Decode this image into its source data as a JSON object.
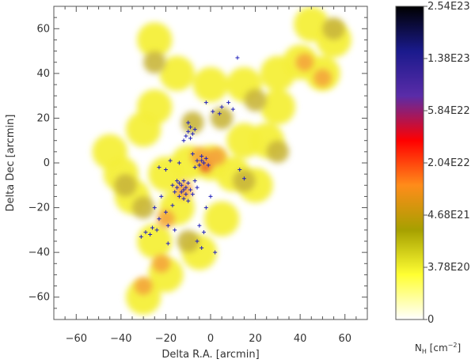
{
  "chart_data": {
    "type": "heatmap",
    "title": "",
    "xlabel": "Delta R.A. [arcmin]",
    "ylabel": "Delta Dec [arcmin]",
    "xlim": [
      -70,
      70
    ],
    "ylim": [
      -70,
      70
    ],
    "x_ticks": [
      -60,
      -40,
      -20,
      0,
      20,
      40,
      60
    ],
    "y_ticks": [
      -60,
      -40,
      -20,
      0,
      20,
      40,
      60
    ],
    "x_tick_labels": [
      "−60",
      "−40",
      "−20",
      "0",
      "20",
      "40",
      "60"
    ],
    "y_tick_labels": [
      "−60",
      "−40",
      "−20",
      "0",
      "20",
      "40",
      "60"
    ],
    "colorbar": {
      "label_main": "N",
      "label_sub": "H",
      "label_unit_open": " [cm",
      "label_unit_exp": "−2",
      "label_unit_close": "]",
      "tick_labels": [
        "2.54E23",
        "1.38E23",
        "5.84E22",
        "2.04E22",
        "4.68E21",
        "3.78E20",
        "0"
      ],
      "stops": [
        "#000000",
        "#1a1a8c",
        "#5a2ca8",
        "#ff0000",
        "#ff8c1a",
        "#a6a000",
        "#ffff33",
        "#ffffff"
      ]
    },
    "colors": {
      "map_base": "#f4ef3a",
      "map_dark": "#c9b63a",
      "map_orange": "#f4a53a",
      "map_red": "#e32222",
      "source_marker": "#2222bb"
    },
    "cloud_core_points": [
      {
        "x": -45,
        "y": 5
      },
      {
        "x": -30,
        "y": 15
      },
      {
        "x": -20,
        "y": -5
      },
      {
        "x": -10,
        "y": 0
      },
      {
        "x": 0,
        "y": 0
      },
      {
        "x": 10,
        "y": -5
      },
      {
        "x": 15,
        "y": 10
      },
      {
        "x": -15,
        "y": -20
      },
      {
        "x": -25,
        "y": -35
      },
      {
        "x": -20,
        "y": -50
      },
      {
        "x": -30,
        "y": -60
      },
      {
        "x": -5,
        "y": -40
      },
      {
        "x": 5,
        "y": -25
      },
      {
        "x": 20,
        "y": -10
      },
      {
        "x": -35,
        "y": -15
      },
      {
        "x": -25,
        "y": 25
      },
      {
        "x": -15,
        "y": 40
      },
      {
        "x": -25,
        "y": 55
      },
      {
        "x": 0,
        "y": 35
      },
      {
        "x": 15,
        "y": 35
      },
      {
        "x": 30,
        "y": 40
      },
      {
        "x": 40,
        "y": 45
      },
      {
        "x": 50,
        "y": 40
      },
      {
        "x": 55,
        "y": 55
      },
      {
        "x": 45,
        "y": 62
      },
      {
        "x": 30,
        "y": 25
      },
      {
        "x": 25,
        "y": 10
      },
      {
        "x": -40,
        "y": -5
      }
    ],
    "dense_patches": [
      {
        "x": -2,
        "y": -1,
        "level": 3
      },
      {
        "x": 0,
        "y": 2,
        "level": 2
      },
      {
        "x": -5,
        "y": 3,
        "level": 2
      },
      {
        "x": -12,
        "y": -12,
        "level": 2
      },
      {
        "x": 3,
        "y": 3,
        "level": 2
      },
      {
        "x": 42,
        "y": 45,
        "level": 2
      },
      {
        "x": 50,
        "y": 38,
        "level": 2
      },
      {
        "x": -20,
        "y": -25,
        "level": 2
      },
      {
        "x": -30,
        "y": -55,
        "level": 2
      },
      {
        "x": -22,
        "y": -45,
        "level": 2
      },
      {
        "x": -25,
        "y": 45,
        "level": 1
      },
      {
        "x": 20,
        "y": 28,
        "level": 1
      },
      {
        "x": 15,
        "y": -8,
        "level": 1
      },
      {
        "x": -8,
        "y": 18,
        "level": 1
      },
      {
        "x": -30,
        "y": -20,
        "level": 1
      },
      {
        "x": 30,
        "y": 5,
        "level": 1
      },
      {
        "x": 55,
        "y": 60,
        "level": 1
      },
      {
        "x": -10,
        "y": -35,
        "level": 1
      },
      {
        "x": 5,
        "y": 20,
        "level": 1
      },
      {
        "x": -38,
        "y": -10,
        "level": 1
      }
    ],
    "sources": [
      {
        "x": -9,
        "y": 16
      },
      {
        "x": -10,
        "y": 14
      },
      {
        "x": -8,
        "y": 13
      },
      {
        "x": -11,
        "y": 12
      },
      {
        "x": -9,
        "y": 11
      },
      {
        "x": -7,
        "y": 15
      },
      {
        "x": -10,
        "y": 18
      },
      {
        "x": -12,
        "y": 10
      },
      {
        "x": -4,
        "y": 1
      },
      {
        "x": -3,
        "y": 0
      },
      {
        "x": -5,
        "y": -1
      },
      {
        "x": -2,
        "y": 2
      },
      {
        "x": -6,
        "y": 1
      },
      {
        "x": -4,
        "y": 3
      },
      {
        "x": -1,
        "y": -1
      },
      {
        "x": -7,
        "y": -2
      },
      {
        "x": -12,
        "y": -8
      },
      {
        "x": -13,
        "y": -10
      },
      {
        "x": -11,
        "y": -11
      },
      {
        "x": -14,
        "y": -9
      },
      {
        "x": -12,
        "y": -12
      },
      {
        "x": -10,
        "y": -9
      },
      {
        "x": -13,
        "y": -13
      },
      {
        "x": -15,
        "y": -11
      },
      {
        "x": -11,
        "y": -14
      },
      {
        "x": -9,
        "y": -12
      },
      {
        "x": -14,
        "y": -15
      },
      {
        "x": -16,
        "y": -13
      },
      {
        "x": -8,
        "y": -14
      },
      {
        "x": -12,
        "y": -16
      },
      {
        "x": -10,
        "y": -17
      },
      {
        "x": -15,
        "y": -8
      },
      {
        "x": -7,
        "y": -8
      },
      {
        "x": -17,
        "y": -10
      },
      {
        "x": -6,
        "y": -11
      },
      {
        "x": -20,
        "y": -3
      },
      {
        "x": -23,
        "y": -2
      },
      {
        "x": -18,
        "y": 1
      },
      {
        "x": -14,
        "y": 0
      },
      {
        "x": 5,
        "y": 25
      },
      {
        "x": 8,
        "y": 27
      },
      {
        "x": 10,
        "y": 24
      },
      {
        "x": 4,
        "y": 22
      },
      {
        "x": -2,
        "y": 27
      },
      {
        "x": 1,
        "y": 23
      },
      {
        "x": 12,
        "y": 47
      },
      {
        "x": -20,
        "y": -22
      },
      {
        "x": -23,
        "y": -25
      },
      {
        "x": -17,
        "y": -19
      },
      {
        "x": -19,
        "y": -28
      },
      {
        "x": -24,
        "y": -30
      },
      {
        "x": -27,
        "y": -32
      },
      {
        "x": -29,
        "y": -31
      },
      {
        "x": -31,
        "y": -33
      },
      {
        "x": -26,
        "y": -29
      },
      {
        "x": -5,
        "y": -28
      },
      {
        "x": -3,
        "y": -31
      },
      {
        "x": -6,
        "y": -35
      },
      {
        "x": -4,
        "y": -38
      },
      {
        "x": 2,
        "y": -40
      },
      {
        "x": -19,
        "y": -36
      },
      {
        "x": -16,
        "y": -30
      },
      {
        "x": 15,
        "y": -7
      },
      {
        "x": 13,
        "y": -3
      },
      {
        "x": -8,
        "y": 4
      },
      {
        "x": -25,
        "y": -20
      },
      {
        "x": -2,
        "y": -20
      },
      {
        "x": 0,
        "y": -15
      },
      {
        "x": -22,
        "y": -15
      }
    ]
  }
}
